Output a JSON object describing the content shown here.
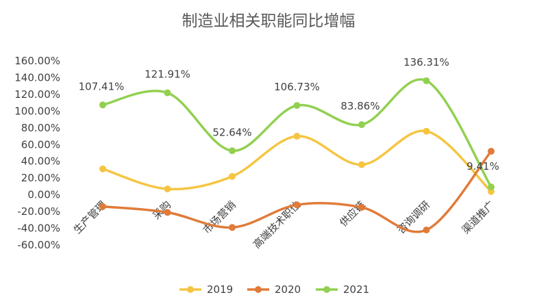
{
  "chart_data": {
    "type": "line",
    "title": "制造业相关职能同比增幅",
    "categories": [
      "生产管理",
      "采购",
      "市场营销",
      "高端技术职位",
      "供应链",
      "咨询调研",
      "渠道推广"
    ],
    "ylim": [
      -0.6,
      1.6
    ],
    "yticks": [
      "-60.00%",
      "-40.00%",
      "-20.00%",
      "0.00%",
      "20.00%",
      "40.00%",
      "60.00%",
      "80.00%",
      "100.00%",
      "120.00%",
      "140.00%",
      "160.00%"
    ],
    "series": [
      {
        "name": "2019",
        "color": "#F5C542",
        "values": [
          0.31,
          0.07,
          0.22,
          0.7,
          0.36,
          0.76,
          0.04
        ]
      },
      {
        "name": "2020",
        "color": "#E07B39",
        "values": [
          -0.14,
          -0.21,
          -0.39,
          -0.12,
          -0.15,
          -0.42,
          0.52
        ]
      },
      {
        "name": "2021",
        "color": "#92D050",
        "values": [
          1.0741,
          1.2191,
          0.5264,
          1.0673,
          0.8386,
          1.3631,
          0.0941
        ],
        "labels": [
          "107.41%",
          "121.91%",
          "52.64%",
          "106.73%",
          "83.86%",
          "136.31%",
          "9.41%"
        ]
      }
    ],
    "legend": "bottom",
    "grid": false
  }
}
